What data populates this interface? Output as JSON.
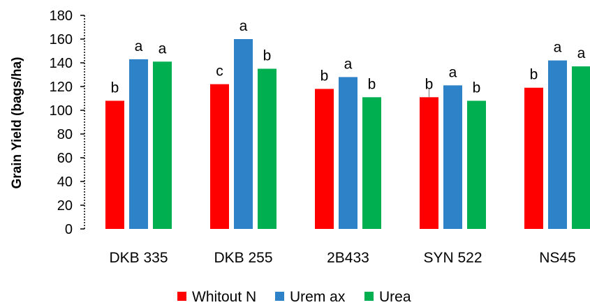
{
  "chart_data": {
    "type": "bar",
    "title": "",
    "xlabel": "",
    "ylabel": "Grain Yield (bags/ha)",
    "ylim": [
      0,
      180
    ],
    "yticks": [
      0,
      20,
      40,
      60,
      80,
      100,
      120,
      140,
      160,
      180
    ],
    "grid": false,
    "legend_position": "bottom",
    "categories": [
      "DKB 335",
      "DKB 255",
      "2B433",
      "SYN 522",
      "NS45"
    ],
    "series": [
      {
        "name": "Whitout N",
        "color": "#ff0000",
        "values": [
          108,
          122,
          118,
          111,
          119
        ],
        "labels": [
          "b",
          "c",
          "b",
          "b",
          "b"
        ]
      },
      {
        "name": "Urem ax",
        "color": "#2e82c8",
        "values": [
          143,
          160,
          128,
          121,
          142
        ],
        "labels": [
          "a",
          "a",
          "a",
          "a",
          "a"
        ]
      },
      {
        "name": "Urea",
        "color": "#00b050",
        "values": [
          141,
          135,
          111,
          108,
          137
        ],
        "labels": [
          "a",
          "b",
          "b",
          "b",
          "a"
        ]
      }
    ],
    "error_bars": [
      {
        "category": "SYN 522",
        "series": "Whitout N",
        "high": 119
      }
    ]
  }
}
